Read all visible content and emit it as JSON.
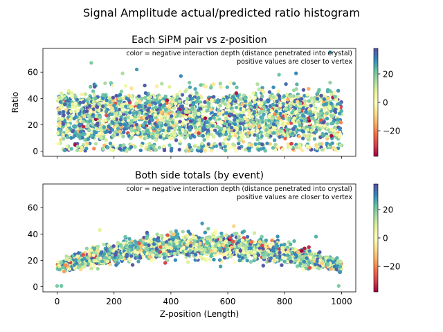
{
  "figure_title": "Signal Amplitude actual/predicted ratio histogram",
  "colormap": {
    "name": "Spectral",
    "stops": [
      "#9e0142",
      "#d53e4f",
      "#f46d43",
      "#fdae61",
      "#fee08b",
      "#ffffbf",
      "#e6f598",
      "#abdda4",
      "#66c2a5",
      "#3288bd",
      "#5e4fa2"
    ]
  },
  "chart_data": [
    {
      "type": "scatter",
      "title": "Each SiPM pair vs z-position",
      "xlabel": "",
      "ylabel": "Ratio",
      "xlim": [
        -50,
        1050
      ],
      "ylim": [
        -4,
        78
      ],
      "xticks": [
        0,
        200,
        400,
        600,
        800,
        1000
      ],
      "xtick_labels_visible": false,
      "yticks": [
        0,
        20,
        40,
        60
      ],
      "grid": false,
      "annotation": [
        "color = negative interaction depth (distance penetrated into crystal)",
        "positive values are closer to vertex"
      ],
      "colorbar": {
        "range": [
          -38,
          38
        ],
        "ticks": [
          -20,
          0,
          20
        ]
      },
      "distribution": {
        "x_range": [
          0,
          1000
        ],
        "band_center": 26,
        "band_halfwidth": 16,
        "low_cluster": [
          0,
          6
        ],
        "outliers_up_to": 67
      },
      "highlight_points": [
        {
          "x": 120,
          "y": 67,
          "c": 20
        },
        {
          "x": 230,
          "y": 59,
          "c": 15
        },
        {
          "x": 280,
          "y": 62,
          "c": 28
        },
        {
          "x": 435,
          "y": 57,
          "c": 30
        },
        {
          "x": 465,
          "y": 52,
          "c": 20
        },
        {
          "x": 630,
          "y": 44,
          "c": -35
        },
        {
          "x": 780,
          "y": 58,
          "c": 22
        },
        {
          "x": 840,
          "y": 59,
          "c": 30
        },
        {
          "x": 960,
          "y": 52,
          "c": 18
        },
        {
          "x": 960,
          "y": 75,
          "c": 28
        },
        {
          "x": 765,
          "y": 28,
          "c": -20
        },
        {
          "x": 780,
          "y": 25,
          "c": -15
        }
      ]
    },
    {
      "type": "scatter",
      "title": "Both side totals (by event)",
      "xlabel": "Z-position (Length)",
      "ylabel": "",
      "xlim": [
        -50,
        1050
      ],
      "ylim": [
        -4,
        78
      ],
      "xticks": [
        0,
        200,
        400,
        600,
        800,
        1000
      ],
      "xtick_labels_visible": true,
      "yticks": [
        0,
        20,
        40,
        60
      ],
      "grid": false,
      "annotation": [
        "color = negative interaction depth (distance penetrated into crystal)",
        "positive values are closer to vertex"
      ],
      "colorbar": {
        "range": [
          -38,
          38
        ],
        "ticks": [
          -20,
          0,
          20
        ]
      },
      "distribution": {
        "x_range": [
          0,
          1000
        ],
        "curve_edge": 15,
        "curve_peak": 31,
        "curve_spread": 4.5
      },
      "highlight_points": [
        {
          "x": 150,
          "y": 43,
          "c": 8
        },
        {
          "x": 380,
          "y": 18,
          "c": -30
        },
        {
          "x": 510,
          "y": 48,
          "c": 28
        },
        {
          "x": 870,
          "y": 29,
          "c": -35
        },
        {
          "x": 885,
          "y": 30,
          "c": -33
        },
        {
          "x": 860,
          "y": 27,
          "c": -38
        },
        {
          "x": 910,
          "y": 38,
          "c": 25
        },
        {
          "x": 0,
          "y": 0.5,
          "c": 20
        },
        {
          "x": 15,
          "y": 0.5,
          "c": 22
        },
        {
          "x": 990,
          "y": 0.5,
          "c": 20
        }
      ]
    }
  ]
}
